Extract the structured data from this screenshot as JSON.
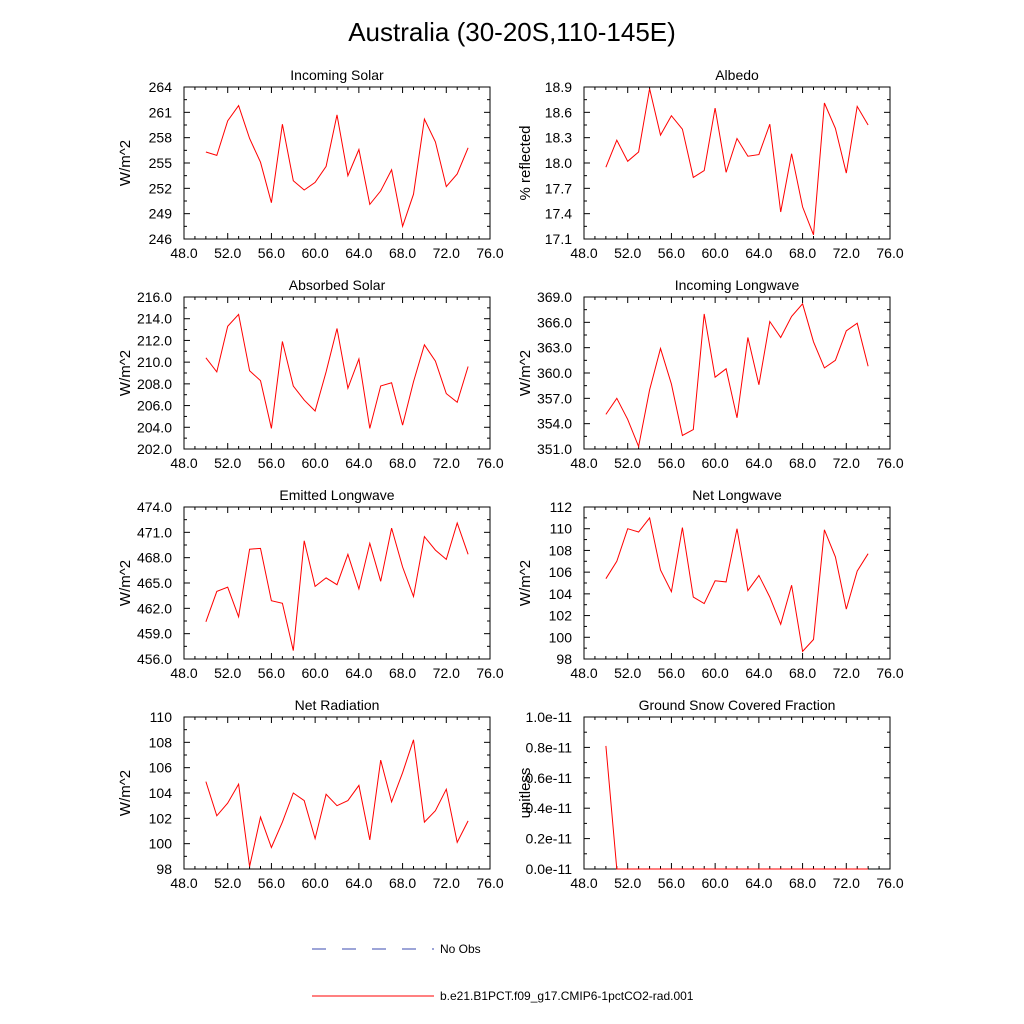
{
  "figure": {
    "title": "Australia (30-20S,110-145E)"
  },
  "legend": {
    "items": [
      {
        "label": "No Obs",
        "color": "#3b4bb0",
        "dash": true
      },
      {
        "label": "b.e21.B1PCT.f09_g17.CMIP6-1pctCO2-rad.001",
        "color": "#ff0000",
        "dash": false
      }
    ]
  },
  "colors": {
    "series": "#ff0000"
  },
  "chart_data": [
    {
      "type": "line",
      "title": "Incoming Solar",
      "ylabel": "W/m^2",
      "xlim": [
        48,
        76
      ],
      "ylim": [
        246,
        264
      ],
      "xticks": [
        48,
        52,
        56,
        60,
        64,
        68,
        72,
        76
      ],
      "xtick_labels": [
        "48.0",
        "52.0",
        "56.0",
        "60.0",
        "64.0",
        "68.0",
        "72.0",
        "76.0"
      ],
      "yticks": [
        246,
        249,
        252,
        255,
        258,
        261,
        264
      ],
      "ytick_labels": [
        "246",
        "249",
        "252",
        "255",
        "258",
        "261",
        "264"
      ],
      "x": [
        50,
        51,
        52,
        53,
        54,
        55,
        56,
        57,
        58,
        59,
        60,
        61,
        62,
        63,
        64,
        65,
        66,
        67,
        68,
        69,
        70,
        71,
        72,
        73,
        74
      ],
      "series": [
        {
          "values": [
            256.3,
            255.9,
            260.0,
            261.8,
            257.9,
            255.1,
            250.3,
            259.6,
            252.9,
            251.8,
            252.7,
            254.6,
            260.7,
            253.5,
            256.6,
            250.1,
            251.7,
            254.2,
            247.5,
            251.3,
            260.2,
            257.5,
            252.2,
            253.7,
            256.8
          ]
        }
      ]
    },
    {
      "type": "line",
      "title": "Albedo",
      "ylabel": "% reflected",
      "xlim": [
        48,
        76
      ],
      "ylim": [
        17.1,
        18.9
      ],
      "xticks": [
        48,
        52,
        56,
        60,
        64,
        68,
        72,
        76
      ],
      "xtick_labels": [
        "48.0",
        "52.0",
        "56.0",
        "60.0",
        "64.0",
        "68.0",
        "72.0",
        "76.0"
      ],
      "yticks": [
        17.1,
        17.4,
        17.7,
        18.0,
        18.3,
        18.6,
        18.9
      ],
      "ytick_labels": [
        "17.1",
        "17.4",
        "17.7",
        "18.0",
        "18.3",
        "18.6",
        "18.9"
      ],
      "x": [
        50,
        51,
        52,
        53,
        54,
        55,
        56,
        57,
        58,
        59,
        60,
        61,
        62,
        63,
        64,
        65,
        66,
        67,
        68,
        69,
        70,
        71,
        72,
        73,
        74
      ],
      "series": [
        {
          "values": [
            17.95,
            18.27,
            18.02,
            18.13,
            18.88,
            18.33,
            18.56,
            18.4,
            17.83,
            17.91,
            18.65,
            17.89,
            18.29,
            18.08,
            18.1,
            18.46,
            17.42,
            18.11,
            17.48,
            17.15,
            18.71,
            18.41,
            17.88,
            18.67,
            18.45
          ]
        }
      ]
    },
    {
      "type": "line",
      "title": "Absorbed Solar",
      "ylabel": "W/m^2",
      "xlim": [
        48,
        76
      ],
      "ylim": [
        202,
        216
      ],
      "xticks": [
        48,
        52,
        56,
        60,
        64,
        68,
        72,
        76
      ],
      "xtick_labels": [
        "48.0",
        "52.0",
        "56.0",
        "60.0",
        "64.0",
        "68.0",
        "72.0",
        "76.0"
      ],
      "yticks": [
        202,
        204,
        206,
        208,
        210,
        212,
        214,
        216
      ],
      "ytick_labels": [
        "202.0",
        "204.0",
        "206.0",
        "208.0",
        "210.0",
        "212.0",
        "214.0",
        "216.0"
      ],
      "x": [
        50,
        51,
        52,
        53,
        54,
        55,
        56,
        57,
        58,
        59,
        60,
        61,
        62,
        63,
        64,
        65,
        66,
        67,
        68,
        69,
        70,
        71,
        72,
        73,
        74
      ],
      "series": [
        {
          "values": [
            210.4,
            209.1,
            213.3,
            214.4,
            209.2,
            208.3,
            203.9,
            211.9,
            207.8,
            206.5,
            205.5,
            209.1,
            213.1,
            207.6,
            210.3,
            203.9,
            207.8,
            208.1,
            204.2,
            208.2,
            211.6,
            210.1,
            207.1,
            206.3,
            209.6
          ]
        }
      ]
    },
    {
      "type": "line",
      "title": "Incoming Longwave",
      "ylabel": "W/m^2",
      "xlim": [
        48,
        76
      ],
      "ylim": [
        351,
        369
      ],
      "xticks": [
        48,
        52,
        56,
        60,
        64,
        68,
        72,
        76
      ],
      "xtick_labels": [
        "48.0",
        "52.0",
        "56.0",
        "60.0",
        "64.0",
        "68.0",
        "72.0",
        "76.0"
      ],
      "yticks": [
        351,
        354,
        357,
        360,
        363,
        366,
        369
      ],
      "ytick_labels": [
        "351.0",
        "354.0",
        "357.0",
        "360.0",
        "363.0",
        "366.0",
        "369.0"
      ],
      "x": [
        50,
        51,
        52,
        53,
        54,
        55,
        56,
        57,
        58,
        59,
        60,
        61,
        62,
        63,
        64,
        65,
        66,
        67,
        68,
        69,
        70,
        71,
        72,
        73,
        74
      ],
      "series": [
        {
          "values": [
            355.1,
            357.0,
            354.5,
            351.3,
            358.0,
            362.9,
            358.7,
            352.6,
            353.3,
            367.0,
            359.5,
            360.5,
            354.7,
            364.2,
            358.6,
            366.1,
            364.2,
            366.7,
            368.2,
            363.7,
            360.6,
            361.5,
            365.0,
            365.9,
            360.8
          ]
        }
      ]
    },
    {
      "type": "line",
      "title": "Emitted Longwave",
      "ylabel": "W/m^2",
      "xlim": [
        48,
        76
      ],
      "ylim": [
        456,
        474
      ],
      "xticks": [
        48,
        52,
        56,
        60,
        64,
        68,
        72,
        76
      ],
      "xtick_labels": [
        "48.0",
        "52.0",
        "56.0",
        "60.0",
        "64.0",
        "68.0",
        "72.0",
        "76.0"
      ],
      "yticks": [
        456,
        459,
        462,
        465,
        468,
        471,
        474
      ],
      "ytick_labels": [
        "456.0",
        "459.0",
        "462.0",
        "465.0",
        "468.0",
        "471.0",
        "474.0"
      ],
      "x": [
        50,
        51,
        52,
        53,
        54,
        55,
        56,
        57,
        58,
        59,
        60,
        61,
        62,
        63,
        64,
        65,
        66,
        67,
        68,
        69,
        70,
        71,
        72,
        73,
        74
      ],
      "series": [
        {
          "values": [
            460.4,
            464.0,
            464.5,
            461.0,
            469.0,
            469.1,
            462.9,
            462.6,
            457.0,
            470.0,
            464.6,
            465.6,
            464.8,
            468.4,
            464.3,
            469.7,
            465.2,
            471.5,
            466.9,
            463.4,
            470.5,
            468.9,
            467.8,
            472.1,
            468.4
          ]
        }
      ]
    },
    {
      "type": "line",
      "title": "Net Longwave",
      "ylabel": "W/m^2",
      "xlim": [
        48,
        76
      ],
      "ylim": [
        98,
        112
      ],
      "xticks": [
        48,
        52,
        56,
        60,
        64,
        68,
        72,
        76
      ],
      "xtick_labels": [
        "48.0",
        "52.0",
        "56.0",
        "60.0",
        "64.0",
        "68.0",
        "72.0",
        "76.0"
      ],
      "yticks": [
        98,
        100,
        102,
        104,
        106,
        108,
        110,
        112
      ],
      "ytick_labels": [
        "98",
        "100",
        "102",
        "104",
        "106",
        "108",
        "110",
        "112"
      ],
      "x": [
        50,
        51,
        52,
        53,
        54,
        55,
        56,
        57,
        58,
        59,
        60,
        61,
        62,
        63,
        64,
        65,
        66,
        67,
        68,
        69,
        70,
        71,
        72,
        73,
        74
      ],
      "series": [
        {
          "values": [
            105.4,
            107.0,
            110.0,
            109.7,
            111.0,
            106.2,
            104.2,
            110.1,
            103.7,
            103.1,
            105.2,
            105.1,
            110.0,
            104.3,
            105.7,
            103.7,
            101.2,
            104.8,
            98.7,
            99.8,
            109.9,
            107.4,
            102.6,
            106.1,
            107.7
          ]
        }
      ]
    },
    {
      "type": "line",
      "title": "Net Radiation",
      "ylabel": "W/m^2",
      "xlim": [
        48,
        76
      ],
      "ylim": [
        98,
        110
      ],
      "xticks": [
        48,
        52,
        56,
        60,
        64,
        68,
        72,
        76
      ],
      "xtick_labels": [
        "48.0",
        "52.0",
        "56.0",
        "60.0",
        "64.0",
        "68.0",
        "72.0",
        "76.0"
      ],
      "yticks": [
        98,
        100,
        102,
        104,
        106,
        108,
        110
      ],
      "ytick_labels": [
        "98",
        "100",
        "102",
        "104",
        "106",
        "108",
        "110"
      ],
      "x": [
        50,
        51,
        52,
        53,
        54,
        55,
        56,
        57,
        58,
        59,
        60,
        61,
        62,
        63,
        64,
        65,
        66,
        67,
        68,
        69,
        70,
        71,
        72,
        73,
        74
      ],
      "series": [
        {
          "values": [
            104.9,
            102.2,
            103.2,
            104.7,
            98.2,
            102.1,
            99.7,
            101.7,
            104.0,
            103.4,
            100.4,
            103.9,
            103.0,
            103.4,
            104.6,
            100.3,
            106.6,
            103.3,
            105.6,
            108.2,
            101.7,
            102.6,
            104.3,
            100.1,
            101.8
          ]
        }
      ]
    },
    {
      "type": "line",
      "title": "Ground Snow Covered Fraction",
      "ylabel": "unitless",
      "xlim": [
        48,
        76
      ],
      "ylim": [
        0,
        1e-11
      ],
      "xticks": [
        48,
        52,
        56,
        60,
        64,
        68,
        72,
        76
      ],
      "xtick_labels": [
        "48.0",
        "52.0",
        "56.0",
        "60.0",
        "64.0",
        "68.0",
        "72.0",
        "76.0"
      ],
      "yticks": [
        0,
        2e-12,
        4e-12,
        6e-12,
        8e-12,
        1e-11
      ],
      "ytick_labels": [
        "0.0e-11",
        "0.2e-11",
        "0.4e-11",
        "0.6e-11",
        "0.8e-11",
        "1.0e-11"
      ],
      "x": [
        50,
        51,
        52,
        53,
        54,
        55,
        56,
        57,
        58,
        59,
        60,
        61,
        62,
        63,
        64,
        65,
        66,
        67,
        68,
        69,
        70,
        71,
        72,
        73,
        74
      ],
      "series": [
        {
          "values": [
            8.1e-12,
            0,
            0,
            0,
            0,
            0,
            0,
            0,
            0,
            0,
            0,
            0,
            0,
            0,
            0,
            0,
            0,
            0,
            0,
            0,
            0,
            0,
            0,
            0,
            0
          ]
        }
      ]
    }
  ]
}
